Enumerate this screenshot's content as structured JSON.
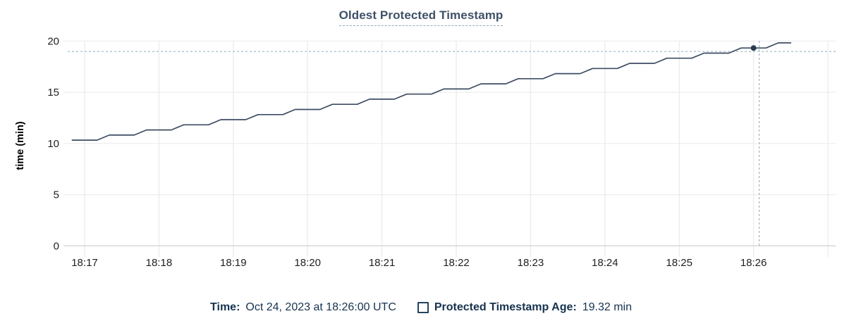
{
  "chart": {
    "colors": {
      "line": "#3e4c63",
      "dot": "#2c3a50",
      "grid": "#ececec",
      "axis": "#d4d4d4",
      "crosshair": "#9fb6c2",
      "tick_label": "#1f1f1f",
      "title": "#3e5168",
      "legend_text": "#16334f"
    }
  },
  "chart_data": {
    "type": "line",
    "title": "Oldest Protected Timestamp",
    "xlabel": "",
    "ylabel": "time (min)",
    "ylim": [
      0,
      20
    ],
    "yticks": [
      0,
      5,
      10,
      15,
      20
    ],
    "xticks": [
      "18:17",
      "18:18",
      "18:19",
      "18:20",
      "18:21",
      "18:22",
      "18:23",
      "18:24",
      "18:25",
      "18:26"
    ],
    "x_grid_extra": [
      "18:27"
    ],
    "grid": true,
    "legend_position": "bottom",
    "x": [
      "18:16:50",
      "18:17:00",
      "18:17:10",
      "18:17:20",
      "18:17:30",
      "18:17:40",
      "18:17:50",
      "18:18:00",
      "18:18:10",
      "18:18:20",
      "18:18:30",
      "18:18:40",
      "18:18:50",
      "18:19:00",
      "18:19:10",
      "18:19:20",
      "18:19:30",
      "18:19:40",
      "18:19:50",
      "18:20:00",
      "18:20:10",
      "18:20:20",
      "18:20:30",
      "18:20:40",
      "18:20:50",
      "18:21:00",
      "18:21:10",
      "18:21:20",
      "18:21:30",
      "18:21:40",
      "18:21:50",
      "18:22:00",
      "18:22:10",
      "18:22:20",
      "18:22:30",
      "18:22:40",
      "18:22:50",
      "18:23:00",
      "18:23:10",
      "18:23:20",
      "18:23:30",
      "18:23:40",
      "18:23:50",
      "18:24:00",
      "18:24:10",
      "18:24:20",
      "18:24:30",
      "18:24:40",
      "18:24:50",
      "18:25:00",
      "18:25:10",
      "18:25:20",
      "18:25:30",
      "18:25:40",
      "18:25:50",
      "18:26:00",
      "18:26:10",
      "18:26:20",
      "18:26:30"
    ],
    "series": [
      {
        "name": "Protected Timestamp Age",
        "values": [
          10.32,
          10.32,
          10.32,
          10.82,
          10.82,
          10.82,
          11.32,
          11.32,
          11.32,
          11.82,
          11.82,
          11.82,
          12.32,
          12.32,
          12.32,
          12.82,
          12.82,
          12.82,
          13.32,
          13.32,
          13.32,
          13.82,
          13.82,
          13.82,
          14.32,
          14.32,
          14.32,
          14.82,
          14.82,
          14.82,
          15.32,
          15.32,
          15.32,
          15.82,
          15.82,
          15.82,
          16.32,
          16.32,
          16.32,
          16.82,
          16.82,
          16.82,
          17.32,
          17.32,
          17.32,
          17.82,
          17.82,
          17.82,
          18.32,
          18.32,
          18.32,
          18.82,
          18.82,
          18.82,
          19.32,
          19.32,
          19.32,
          19.82,
          19.82
        ]
      }
    ],
    "hover_point": {
      "x": "18:26:00",
      "y": 19.32
    }
  },
  "legend": {
    "time_label": "Time:",
    "time_value": "Oct 24, 2023 at 18:26:00 UTC",
    "series_label": "Protected Timestamp Age:",
    "series_value": "19.32 min",
    "checkbox_checked": false
  }
}
